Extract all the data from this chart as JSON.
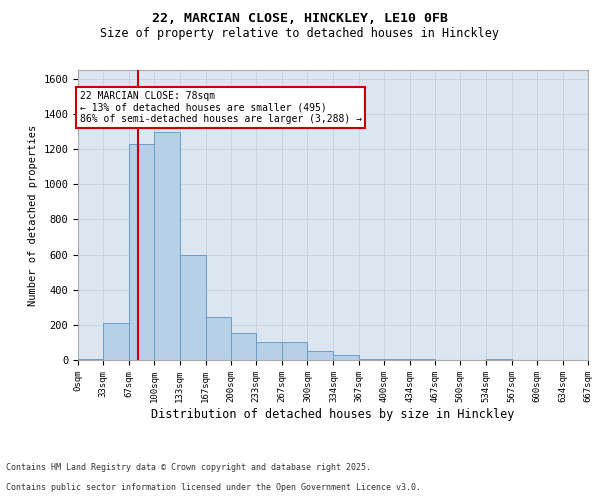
{
  "title1": "22, MARCIAN CLOSE, HINCKLEY, LE10 0FB",
  "title2": "Size of property relative to detached houses in Hinckley",
  "xlabel": "Distribution of detached houses by size in Hinckley",
  "ylabel": "Number of detached properties",
  "property_size": 78,
  "annotation_line1": "22 MARCIAN CLOSE: 78sqm",
  "annotation_line2": "← 13% of detached houses are smaller (495)",
  "annotation_line3": "86% of semi-detached houses are larger (3,288) →",
  "footnote1": "Contains HM Land Registry data © Crown copyright and database right 2025.",
  "footnote2": "Contains public sector information licensed under the Open Government Licence v3.0.",
  "bin_edges": [
    0,
    33,
    67,
    100,
    133,
    167,
    200,
    233,
    267,
    300,
    334,
    367,
    400,
    434,
    467,
    500,
    534,
    567,
    600,
    634,
    667
  ],
  "bin_counts": [
    5,
    210,
    1230,
    1300,
    600,
    245,
    155,
    100,
    100,
    50,
    30,
    5,
    5,
    5,
    0,
    0,
    5,
    0,
    0,
    0
  ],
  "bar_color": "#b8cfe8",
  "bar_edge_color": "#6a9ec8",
  "vline_color": "#cc0000",
  "grid_color": "#c8d0dc",
  "bg_color": "#dce6f0",
  "ylim": [
    0,
    1650
  ],
  "yticks": [
    0,
    200,
    400,
    600,
    800,
    1000,
    1200,
    1400,
    1600
  ],
  "annotation_box_color": "#cc0000",
  "fig_bg": "#ffffff"
}
